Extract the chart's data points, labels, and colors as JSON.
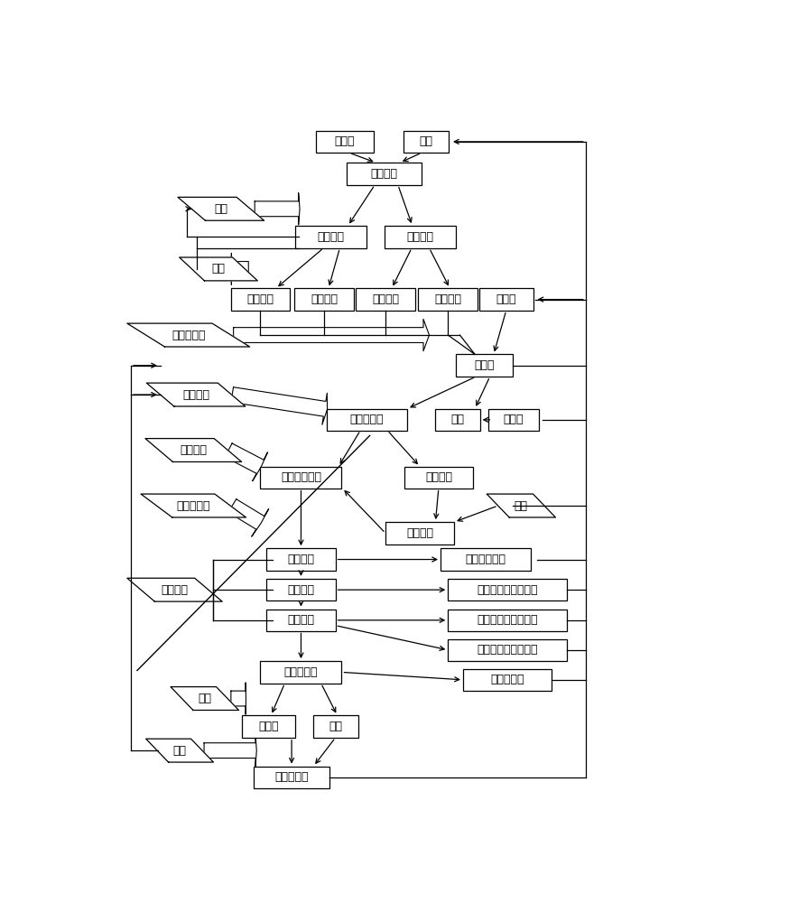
{
  "fig_w": 8.94,
  "fig_h": 10.0,
  "dpi": 100,
  "bg": "#ffffff",
  "ec": "#000000",
  "tc": "#000000",
  "fs": 9.0,
  "xlim": [
    0.0,
    1.0
  ],
  "ylim": [
    -0.17,
    1.02
  ],
  "rects": {
    "粉煤灰": [
      0.39,
      0.963,
      0.092,
      0.038
    ],
    "溶剂": [
      0.52,
      0.963,
      0.072,
      0.038
    ],
    "原始浆料": [
      0.453,
      0.908,
      0.12,
      0.038
    ],
    "富铁灰浆": [
      0.368,
      0.8,
      0.114,
      0.038
    ],
    "贫铁灰浆": [
      0.51,
      0.8,
      0.114,
      0.038
    ],
    "富铁滤液": [
      0.255,
      0.693,
      0.095,
      0.038
    ],
    "富铁滤饼": [
      0.357,
      0.693,
      0.095,
      0.038
    ],
    "贫铁滤液": [
      0.455,
      0.693,
      0.095,
      0.038
    ],
    "贫铁滤饼": [
      0.555,
      0.693,
      0.095,
      0.038
    ],
    "酸溶液": [
      0.648,
      0.693,
      0.086,
      0.038
    ],
    "酸浆液": [
      0.613,
      0.58,
      0.092,
      0.038
    ],
    "氯化铝溶液": [
      0.425,
      0.487,
      0.128,
      0.038
    ],
    "残渣": [
      0.57,
      0.487,
      0.072,
      0.038
    ],
    "洗脱剂": [
      0.66,
      0.487,
      0.08,
      0.038
    ],
    "氯化铝精制液": [
      0.32,
      0.388,
      0.13,
      0.038
    ],
    "饱和树脂": [
      0.54,
      0.388,
      0.11,
      0.038
    ],
    "再生树脂": [
      0.51,
      0.293,
      0.11,
      0.038
    ],
    "一效料液": [
      0.32,
      0.248,
      0.11,
      0.038
    ],
    "新蒸汽冷凝水": [
      0.615,
      0.248,
      0.144,
      0.038
    ],
    "二效料液": [
      0.32,
      0.196,
      0.11,
      0.038
    ],
    "一效二次蒸汽冷凝水": [
      0.65,
      0.196,
      0.19,
      0.038
    ],
    "三效料液": [
      0.32,
      0.144,
      0.11,
      0.038
    ],
    "二效二次蒸汽冷凝水": [
      0.65,
      0.144,
      0.19,
      0.038
    ],
    "三效二次蒸汽冷凝水": [
      0.65,
      0.093,
      0.19,
      0.038
    ],
    "四效冷凝水": [
      0.65,
      0.042,
      0.142,
      0.038
    ],
    "结晶氯化铝": [
      0.32,
      0.055,
      0.13,
      0.038
    ],
    "氧化铝": [
      0.268,
      -0.038,
      0.086,
      0.038
    ],
    "烟气": [
      0.375,
      -0.038,
      0.072,
      0.038
    ],
    "吸收酸溶液": [
      0.305,
      -0.125,
      0.12,
      0.038
    ]
  },
  "paras": {
    "磁选": [
      0.192,
      0.848,
      0.094,
      0.04,
      0.022
    ],
    "过滤": [
      0.188,
      0.745,
      0.085,
      0.04,
      0.02
    ],
    "加热，降温": [
      0.14,
      0.632,
      0.136,
      0.04,
      0.03
    ],
    "分离洗涤": [
      0.152,
      0.53,
      0.114,
      0.04,
      0.022
    ],
    "树脂除杂": [
      0.148,
      0.435,
      0.11,
      0.04,
      0.022
    ],
    "新蒸汽加热": [
      0.148,
      0.34,
      0.118,
      0.04,
      0.025
    ],
    "蒸发结晶": [
      0.118,
      0.196,
      0.108,
      0.04,
      0.022
    ],
    "再生": [
      0.672,
      0.34,
      0.074,
      0.04,
      0.018
    ],
    "煅烧": [
      0.166,
      0.01,
      0.073,
      0.04,
      0.018
    ],
    "吸收": [
      0.126,
      -0.079,
      0.072,
      0.04,
      0.018
    ]
  },
  "wide_arrows": [
    [
      0.246,
      0.848,
      0.318,
      0.848,
      0.013,
      0.028
    ],
    [
      0.236,
      0.745,
      0.208,
      0.745,
      0.013,
      0.028
    ],
    [
      0.212,
      0.632,
      0.525,
      0.632,
      0.013,
      0.03
    ],
    [
      0.21,
      0.53,
      0.362,
      0.505,
      0.013,
      0.028
    ],
    [
      0.204,
      0.435,
      0.256,
      0.406,
      0.013,
      0.028
    ],
    [
      0.21,
      0.34,
      0.256,
      0.31,
      0.013,
      0.028
    ],
    [
      0.208,
      0.01,
      0.232,
      0.01,
      0.013,
      0.022
    ],
    [
      0.165,
      -0.079,
      0.249,
      -0.079,
      0.013,
      0.022
    ]
  ],
  "arrows": [
    [
      0.397,
      0.944,
      0.44,
      0.927
    ],
    [
      0.513,
      0.944,
      0.478,
      0.927
    ],
    [
      0.438,
      0.889,
      0.395,
      0.819
    ],
    [
      0.475,
      0.889,
      0.498,
      0.819
    ],
    [
      0.356,
      0.781,
      0.28,
      0.712
    ],
    [
      0.382,
      0.781,
      0.364,
      0.712
    ],
    [
      0.497,
      0.781,
      0.465,
      0.712
    ],
    [
      0.525,
      0.781,
      0.558,
      0.712
    ],
    [
      0.648,
      0.674,
      0.628,
      0.599
    ],
    [
      0.6,
      0.561,
      0.49,
      0.506
    ],
    [
      0.622,
      0.561,
      0.598,
      0.506
    ],
    [
      0.626,
      0.487,
      0.606,
      0.487
    ],
    [
      0.415,
      0.469,
      0.38,
      0.407
    ],
    [
      0.458,
      0.469,
      0.51,
      0.407
    ],
    [
      0.54,
      0.37,
      0.535,
      0.312
    ],
    [
      0.455,
      0.293,
      0.386,
      0.37
    ],
    [
      0.635,
      0.34,
      0.565,
      0.312
    ],
    [
      0.32,
      0.37,
      0.32,
      0.267
    ],
    [
      0.375,
      0.248,
      0.543,
      0.248
    ],
    [
      0.32,
      0.23,
      0.32,
      0.215
    ],
    [
      0.375,
      0.196,
      0.555,
      0.196
    ],
    [
      0.32,
      0.178,
      0.32,
      0.163
    ],
    [
      0.375,
      0.144,
      0.555,
      0.144
    ],
    [
      0.375,
      0.135,
      0.555,
      0.093
    ],
    [
      0.32,
      0.126,
      0.32,
      0.074
    ],
    [
      0.385,
      0.055,
      0.579,
      0.042
    ],
    [
      0.294,
      0.036,
      0.272,
      -0.019
    ],
    [
      0.352,
      0.036,
      0.378,
      -0.019
    ],
    [
      0.305,
      -0.057,
      0.305,
      -0.106
    ],
    [
      0.375,
      -0.057,
      0.34,
      -0.106
    ]
  ],
  "lines": [
    [
      0.255,
      0.674,
      0.255,
      0.632
    ],
    [
      0.255,
      0.632,
      0.574,
      0.632
    ],
    [
      0.574,
      0.632,
      0.598,
      0.599
    ],
    [
      0.357,
      0.674,
      0.357,
      0.632
    ],
    [
      0.455,
      0.674,
      0.455,
      0.632
    ],
    [
      0.555,
      0.674,
      0.555,
      0.632
    ],
    [
      0.555,
      0.632,
      0.598,
      0.599
    ],
    [
      0.316,
      0.8,
      0.138,
      0.8
    ],
    [
      0.138,
      0.8,
      0.138,
      0.848
    ],
    [
      0.138,
      0.848,
      0.145,
      0.848
    ],
    [
      0.153,
      0.745,
      0.153,
      0.8
    ],
    [
      0.153,
      0.781,
      0.316,
      0.781
    ],
    [
      0.048,
      0.53,
      0.048,
      0.58
    ],
    [
      0.048,
      0.58,
      0.095,
      0.58
    ],
    [
      0.048,
      0.53,
      0.095,
      0.53
    ],
    [
      0.048,
      -0.079,
      0.048,
      0.53
    ],
    [
      0.048,
      -0.079,
      0.092,
      -0.079
    ],
    [
      0.566,
      0.963,
      0.775,
      0.963
    ],
    [
      0.775,
      0.963,
      0.775,
      0.693
    ],
    [
      0.694,
      0.693,
      0.775,
      0.693
    ],
    [
      0.775,
      0.693,
      0.775,
      -0.125
    ],
    [
      0.698,
      0.248,
      0.775,
      0.248
    ],
    [
      0.745,
      0.196,
      0.775,
      0.196
    ],
    [
      0.745,
      0.144,
      0.775,
      0.144
    ],
    [
      0.745,
      0.093,
      0.775,
      0.093
    ],
    [
      0.721,
      0.042,
      0.775,
      0.042
    ],
    [
      0.706,
      0.487,
      0.775,
      0.487
    ],
    [
      0.658,
      0.34,
      0.775,
      0.34
    ],
    [
      0.659,
      0.58,
      0.775,
      0.58
    ],
    [
      0.365,
      -0.125,
      0.775,
      -0.125
    ],
    [
      0.18,
      0.248,
      0.275,
      0.248
    ],
    [
      0.18,
      0.196,
      0.275,
      0.196
    ],
    [
      0.18,
      0.144,
      0.275,
      0.144
    ],
    [
      0.18,
      0.144,
      0.18,
      0.248
    ]
  ],
  "arrow_lines": [
    [
      0.138,
      0.848,
      0.145,
      0.848
    ],
    [
      0.775,
      0.963,
      0.559,
      0.963
    ],
    [
      0.775,
      0.693,
      0.694,
      0.693
    ]
  ],
  "note_dash": [
    0.43,
    0.058,
    0.46,
    0.058
  ]
}
